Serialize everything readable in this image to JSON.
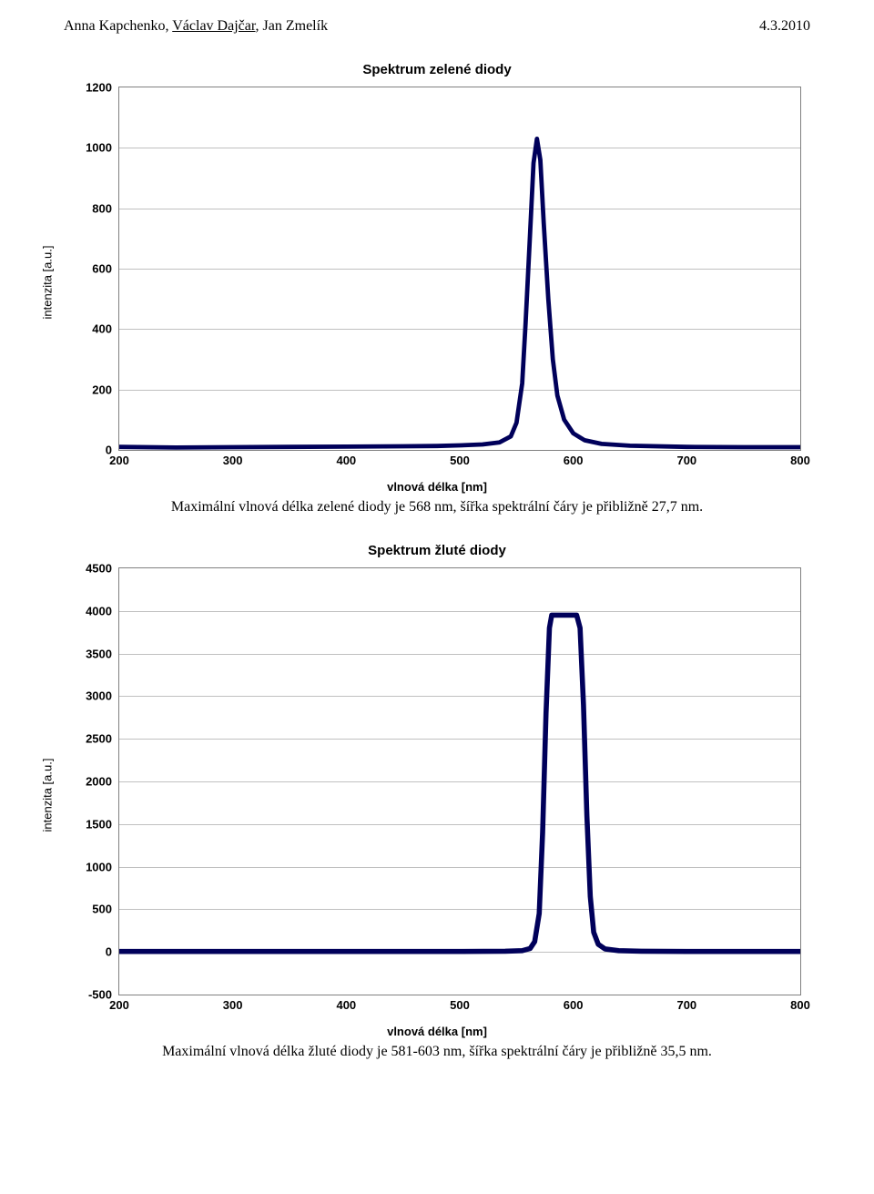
{
  "header": {
    "authors_html": "Anna Kapchenko, <u>Václav Dajčar</u>, Jan Zmelík",
    "date": "4.3.2010"
  },
  "chart1": {
    "type": "line",
    "title": "Spektrum zelené diody",
    "ylabel": "intenzita [a.u.]",
    "xlabel": "vlnová délka [nm]",
    "xlim": [
      200,
      800
    ],
    "xticks": [
      200,
      300,
      400,
      500,
      600,
      700,
      800
    ],
    "ylim": [
      0,
      1200
    ],
    "yticks": [
      0,
      200,
      400,
      600,
      800,
      1000,
      1200
    ],
    "grid_color": "#c0c0c0",
    "line_color": "#00005a",
    "line_width": 2.4,
    "background_color": "#ffffff",
    "caption": "Maximální vlnová délka zelené diody je 568 nm, šířka spektrální čáry je přibližně 27,7 nm.",
    "points": [
      [
        200,
        10
      ],
      [
        250,
        8
      ],
      [
        300,
        9
      ],
      [
        350,
        10
      ],
      [
        400,
        11
      ],
      [
        450,
        12
      ],
      [
        480,
        13
      ],
      [
        500,
        15
      ],
      [
        520,
        18
      ],
      [
        535,
        25
      ],
      [
        545,
        45
      ],
      [
        550,
        90
      ],
      [
        555,
        220
      ],
      [
        558,
        420
      ],
      [
        562,
        720
      ],
      [
        565,
        950
      ],
      [
        568,
        1030
      ],
      [
        571,
        960
      ],
      [
        574,
        750
      ],
      [
        578,
        500
      ],
      [
        582,
        300
      ],
      [
        586,
        180
      ],
      [
        592,
        100
      ],
      [
        600,
        55
      ],
      [
        610,
        32
      ],
      [
        625,
        20
      ],
      [
        650,
        14
      ],
      [
        700,
        10
      ],
      [
        750,
        9
      ],
      [
        800,
        9
      ]
    ]
  },
  "chart2": {
    "type": "line",
    "title": "Spektrum žluté diody",
    "ylabel": "intenzita [a.u.]",
    "xlabel": "vlnová délka [nm]",
    "xlim": [
      200,
      800
    ],
    "xticks": [
      200,
      300,
      400,
      500,
      600,
      700,
      800
    ],
    "ylim": [
      -500,
      4500
    ],
    "yticks": [
      -500,
      0,
      500,
      1000,
      1500,
      2000,
      2500,
      3000,
      3500,
      4000,
      4500
    ],
    "grid_color": "#c0c0c0",
    "line_color": "#00005a",
    "line_width": 2.8,
    "background_color": "#ffffff",
    "caption": "Maximální vlnová délka žluté diody je 581-603 nm, šířka spektrální čáry je přibližně 35,5 nm.",
    "points": [
      [
        200,
        5
      ],
      [
        300,
        5
      ],
      [
        400,
        5
      ],
      [
        500,
        5
      ],
      [
        540,
        8
      ],
      [
        555,
        15
      ],
      [
        562,
        40
      ],
      [
        566,
        120
      ],
      [
        570,
        450
      ],
      [
        573,
        1400
      ],
      [
        576,
        2800
      ],
      [
        579,
        3800
      ],
      [
        581,
        3950
      ],
      [
        585,
        3950
      ],
      [
        590,
        3950
      ],
      [
        595,
        3950
      ],
      [
        600,
        3950
      ],
      [
        603,
        3950
      ],
      [
        606,
        3800
      ],
      [
        609,
        2900
      ],
      [
        612,
        1600
      ],
      [
        615,
        650
      ],
      [
        618,
        230
      ],
      [
        622,
        90
      ],
      [
        628,
        35
      ],
      [
        640,
        15
      ],
      [
        660,
        8
      ],
      [
        700,
        5
      ],
      [
        750,
        5
      ],
      [
        800,
        5
      ]
    ]
  }
}
